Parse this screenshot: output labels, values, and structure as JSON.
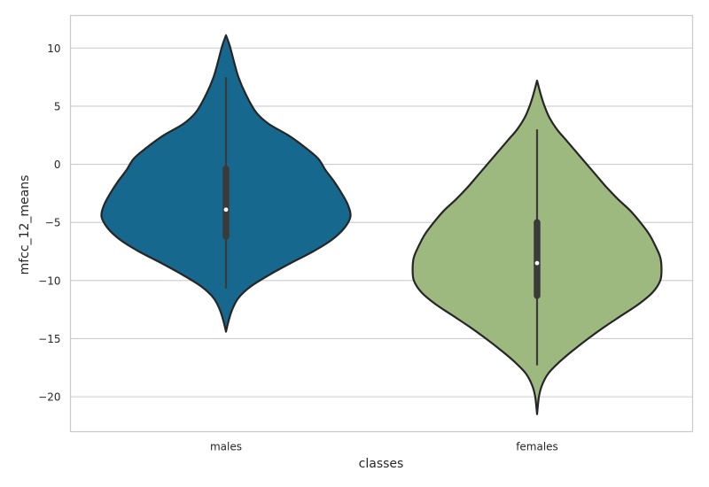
{
  "chart_data": {
    "type": "violin",
    "xlabel": "classes",
    "ylabel": "mfcc_12_means",
    "ylim": [
      -23,
      12.8
    ],
    "yticks": [
      10,
      5,
      0,
      -5,
      -10,
      -15,
      -20
    ],
    "ytick_labels": [
      "10",
      "5",
      "0",
      "−5",
      "−10",
      "−15",
      "−20"
    ],
    "grid": true,
    "categories": [
      "males",
      "females"
    ],
    "series": [
      {
        "category": "males",
        "color": "#16688e",
        "min": -10.7,
        "q1": -6.2,
        "median": -3.9,
        "q3": -0.4,
        "max": 7.5,
        "kde_extent": [
          -14.4,
          11.1
        ],
        "density_profile": [
          [
            11.1,
            0.0
          ],
          [
            10.2,
            0.03
          ],
          [
            9.0,
            0.06
          ],
          [
            7.5,
            0.1
          ],
          [
            6.0,
            0.16
          ],
          [
            4.5,
            0.24
          ],
          [
            3.5,
            0.34
          ],
          [
            2.5,
            0.5
          ],
          [
            1.5,
            0.63
          ],
          [
            0.5,
            0.74
          ],
          [
            -0.5,
            0.8
          ],
          [
            -1.5,
            0.87
          ],
          [
            -2.5,
            0.93
          ],
          [
            -3.5,
            0.98
          ],
          [
            -4.5,
            1.0
          ],
          [
            -5.5,
            0.95
          ],
          [
            -6.5,
            0.85
          ],
          [
            -7.5,
            0.7
          ],
          [
            -8.5,
            0.52
          ],
          [
            -9.5,
            0.35
          ],
          [
            -10.5,
            0.2
          ],
          [
            -11.5,
            0.1
          ],
          [
            -12.5,
            0.05
          ],
          [
            -13.5,
            0.02
          ],
          [
            -14.4,
            0.0
          ]
        ]
      },
      {
        "category": "females",
        "color": "#9eb97f",
        "min": -17.3,
        "q1": -11.3,
        "median": -8.5,
        "q3": -5.0,
        "max": 3.0,
        "kde_extent": [
          -21.5,
          7.2
        ],
        "density_profile": [
          [
            7.2,
            0.0
          ],
          [
            6.0,
            0.03
          ],
          [
            5.0,
            0.06
          ],
          [
            4.0,
            0.1
          ],
          [
            3.0,
            0.16
          ],
          [
            2.0,
            0.24
          ],
          [
            1.0,
            0.32
          ],
          [
            0.0,
            0.4
          ],
          [
            -1.0,
            0.48
          ],
          [
            -2.0,
            0.56
          ],
          [
            -3.0,
            0.65
          ],
          [
            -4.0,
            0.75
          ],
          [
            -5.0,
            0.83
          ],
          [
            -6.0,
            0.9
          ],
          [
            -7.0,
            0.95
          ],
          [
            -8.0,
            0.99
          ],
          [
            -9.0,
            1.0
          ],
          [
            -10.0,
            0.99
          ],
          [
            -11.0,
            0.93
          ],
          [
            -12.0,
            0.82
          ],
          [
            -13.0,
            0.68
          ],
          [
            -14.0,
            0.54
          ],
          [
            -15.0,
            0.41
          ],
          [
            -16.0,
            0.29
          ],
          [
            -17.0,
            0.18
          ],
          [
            -18.0,
            0.09
          ],
          [
            -19.0,
            0.04
          ],
          [
            -20.0,
            0.015
          ],
          [
            -21.5,
            0.0
          ]
        ]
      }
    ]
  }
}
